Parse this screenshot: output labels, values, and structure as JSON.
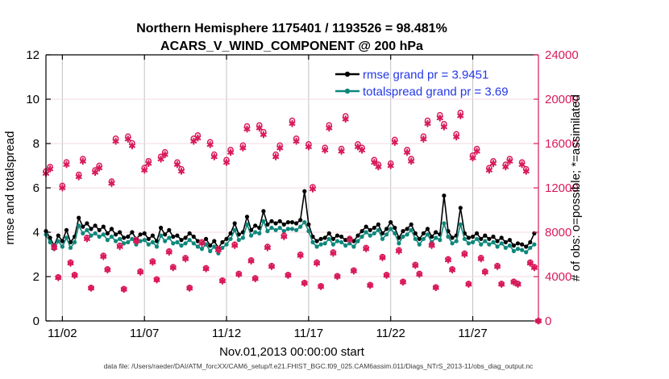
{
  "figure": {
    "background": "#ffffff"
  },
  "chart_data": {
    "type": "line+scatter",
    "title_line1": "Northern Hemisphere 1175401 / 1193526 = 98.481%",
    "title_line2": "ACARS_V_WIND_COMPONENT @ 200 hPa",
    "xlabel": "Nov.01,2013 00:00:00 start",
    "footer": "data file: /Users/raeder/DAI/ATM_forcXX/CAM6_setup/f.e21.FHIST_BGC.f09_025.CAM6assim.011/Diags_NTrS_2013-11/obs_diag_output.nc",
    "samples_per_day": 4,
    "rmse_grand_pr": 3.9451,
    "totalspread_grand_pr": 3.69,
    "legend_text_color": "#2438e8",
    "x_axis": {
      "range_days": [
        0,
        30
      ],
      "tick_days": [
        1,
        6,
        11,
        16,
        21,
        26
      ],
      "tick_labels": [
        "11/02",
        "11/07",
        "11/12",
        "11/17",
        "11/22",
        "11/27"
      ],
      "grid_color": "#c2c2c2"
    },
    "left_axis": {
      "label": "rmse and totalspread",
      "range": [
        0,
        12
      ],
      "ticks": [
        0,
        2,
        4,
        6,
        8,
        10,
        12
      ],
      "color": "#000000",
      "grid_color": "#f3d9e2"
    },
    "right_axis": {
      "label": "# of obs: o=possible; *=assimilated",
      "range": [
        0,
        24000
      ],
      "ticks": [
        0,
        4000,
        8000,
        12000,
        16000,
        20000,
        24000
      ],
      "color": "#d91a59"
    },
    "series": [
      {
        "name": "rmse",
        "legend": "rmse grand pr = 3.9451",
        "color": "#000000",
        "axis": "left",
        "daily": [
          [
            4.05,
            3.75,
            3.4,
            3.85
          ],
          [
            3.6,
            4.1,
            3.55,
            3.8
          ],
          [
            4.65,
            4.25,
            4.4,
            4.15
          ],
          [
            4.3,
            4.1,
            4.25,
            3.95
          ],
          [
            4.15,
            3.9,
            4.0,
            3.75
          ],
          [
            3.8,
            4.0,
            3.7,
            3.9
          ],
          [
            3.95,
            3.7,
            3.85,
            3.6
          ],
          [
            4.2,
            3.9,
            4.1,
            3.8
          ],
          [
            3.85,
            3.65,
            3.75,
            3.95
          ],
          [
            3.8,
            3.6,
            3.5,
            3.7
          ],
          [
            3.4,
            3.6,
            3.3,
            3.55
          ],
          [
            3.7,
            3.95,
            4.4,
            3.9
          ],
          [
            4.0,
            4.7,
            4.1,
            4.3
          ],
          [
            4.2,
            4.95,
            4.35,
            4.5
          ],
          [
            4.4,
            4.5,
            4.35,
            4.45
          ],
          [
            4.45,
            4.4,
            4.55,
            5.85
          ],
          [
            4.35,
            3.8,
            3.6,
            3.7
          ],
          [
            3.75,
            3.95,
            3.7,
            3.85
          ],
          [
            3.8,
            3.65,
            3.75,
            3.6
          ],
          [
            3.85,
            4.05,
            4.25,
            4.1
          ],
          [
            4.2,
            4.35,
            3.95,
            4.15
          ],
          [
            4.45,
            4.2,
            3.75,
            4.05
          ],
          [
            4.15,
            4.35,
            3.95,
            3.7
          ],
          [
            3.95,
            4.15,
            3.8,
            4.0
          ],
          [
            3.9,
            5.65,
            4.05,
            3.75
          ],
          [
            3.85,
            5.1,
            3.95,
            3.75
          ],
          [
            3.8,
            3.95,
            3.7,
            3.85
          ],
          [
            3.7,
            3.8,
            3.6,
            3.75
          ],
          [
            3.55,
            3.65,
            3.4,
            3.5
          ],
          [
            3.45,
            3.35,
            3.55,
            3.95
          ]
        ]
      },
      {
        "name": "totalspread",
        "legend": "totalspread grand pr = 3.69",
        "color": "#0e877b",
        "axis": "left",
        "daily": [
          [
            3.9,
            3.55,
            3.25,
            3.6
          ],
          [
            3.35,
            3.75,
            3.3,
            3.55
          ],
          [
            4.3,
            3.95,
            4.1,
            3.85
          ],
          [
            3.95,
            3.8,
            3.9,
            3.65
          ],
          [
            3.8,
            3.6,
            3.7,
            3.5
          ],
          [
            3.55,
            3.7,
            3.45,
            3.6
          ],
          [
            3.65,
            3.45,
            3.55,
            3.35
          ],
          [
            3.85,
            3.6,
            3.75,
            3.5
          ],
          [
            3.55,
            3.4,
            3.5,
            3.65
          ],
          [
            3.5,
            3.35,
            3.25,
            3.45
          ],
          [
            3.15,
            3.35,
            3.05,
            3.3
          ],
          [
            3.45,
            3.7,
            4.1,
            3.65
          ],
          [
            3.75,
            4.35,
            3.85,
            4.0
          ],
          [
            3.95,
            4.5,
            4.05,
            4.2
          ],
          [
            4.1,
            4.2,
            4.05,
            4.15
          ],
          [
            4.15,
            4.1,
            4.25,
            4.45
          ],
          [
            4.05,
            3.55,
            3.35,
            3.45
          ],
          [
            3.5,
            3.7,
            3.45,
            3.6
          ],
          [
            3.55,
            3.4,
            3.5,
            3.35
          ],
          [
            3.6,
            3.8,
            4.0,
            3.85
          ],
          [
            3.95,
            4.1,
            3.7,
            3.9
          ],
          [
            4.15,
            3.95,
            3.5,
            3.8
          ],
          [
            3.9,
            4.1,
            3.7,
            3.45
          ],
          [
            3.7,
            3.9,
            3.55,
            3.75
          ],
          [
            3.65,
            4.4,
            3.8,
            3.5
          ],
          [
            3.6,
            4.35,
            3.7,
            3.5
          ],
          [
            3.55,
            3.7,
            3.45,
            3.6
          ],
          [
            3.45,
            3.55,
            3.35,
            3.5
          ],
          [
            3.3,
            3.4,
            3.15,
            3.25
          ],
          [
            3.2,
            3.1,
            3.3,
            3.45
          ]
        ]
      }
    ],
    "obs": {
      "color": "#d91a59",
      "axis": "right",
      "possible_marker": "o",
      "assimilated_marker": "*",
      "assimilated_daily": [
        [
          13300,
          13700,
          6600,
          3900
        ],
        [
          12000,
          14100,
          5200,
          4100
        ],
        [
          13000,
          14400,
          7400,
          2950
        ],
        [
          13400,
          13800,
          5800,
          4600
        ],
        [
          12400,
          16200,
          6700,
          2850
        ],
        [
          16400,
          15800,
          7200,
          4400
        ],
        [
          13600,
          14200,
          5300,
          3700
        ],
        [
          14600,
          15000,
          6200,
          4800
        ],
        [
          14100,
          13500,
          5600,
          2950
        ],
        [
          16200,
          16500,
          7000,
          4700
        ],
        [
          15900,
          14800,
          6400,
          3600
        ],
        [
          14300,
          15200,
          6800,
          4200
        ],
        [
          15600,
          17300,
          5400,
          3800
        ],
        [
          17400,
          16800,
          6600,
          4900
        ],
        [
          14800,
          15600,
          7600,
          4100
        ],
        [
          17800,
          16200,
          5900,
          3400
        ],
        [
          15700,
          11900,
          5200,
          3100
        ],
        [
          15400,
          17400,
          6100,
          4000
        ],
        [
          15300,
          18200,
          7300,
          4500
        ],
        [
          15700,
          15400,
          6500,
          3200
        ],
        [
          14300,
          13900,
          5700,
          4100
        ],
        [
          14000,
          16100,
          6300,
          3500
        ],
        [
          15200,
          14400,
          5000,
          4200
        ],
        [
          16400,
          17800,
          6800,
          3000
        ],
        [
          18300,
          17500,
          5500,
          4600
        ],
        [
          16600,
          18500,
          6000,
          3300
        ],
        [
          14700,
          15300,
          5600,
          4400
        ],
        [
          13600,
          14200,
          4900,
          3300
        ],
        [
          13900,
          14400,
          3500,
          3300
        ],
        [
          14100,
          13500,
          5200,
          4800
        ]
      ],
      "possible_daily": [
        [
          13500,
          13900,
          6700,
          3960
        ],
        [
          12200,
          14320,
          5280,
          4160
        ],
        [
          13200,
          14620,
          7510,
          3000
        ],
        [
          13600,
          14010,
          5890,
          4670
        ],
        [
          12590,
          16450,
          6800,
          2890
        ],
        [
          16650,
          16040,
          7310,
          4470
        ],
        [
          13810,
          14420,
          5380,
          3760
        ],
        [
          14820,
          15230,
          6290,
          4870
        ],
        [
          14310,
          13700,
          5680,
          2995
        ],
        [
          16450,
          16750,
          7110,
          4770
        ],
        [
          16140,
          15020,
          6500,
          3655
        ],
        [
          14520,
          15430,
          6900,
          4260
        ],
        [
          15840,
          17560,
          5480,
          3860
        ],
        [
          17660,
          17050,
          6700,
          4975
        ],
        [
          15020,
          15840,
          7710,
          4160
        ],
        [
          18070,
          16450,
          5990,
          3450
        ],
        [
          15940,
          12080,
          5280,
          3150
        ],
        [
          15630,
          17660,
          6190,
          4060
        ],
        [
          15530,
          18475,
          7410,
          4570
        ],
        [
          15940,
          15630,
          6600,
          3250
        ],
        [
          14520,
          14110,
          5785,
          4160
        ],
        [
          14210,
          16345,
          6395,
          3550
        ],
        [
          15430,
          14620,
          5075,
          4265
        ],
        [
          16650,
          18070,
          6900,
          3045
        ],
        [
          18575,
          17765,
          5580,
          4670
        ],
        [
          16850,
          18780,
          6090,
          3350
        ],
        [
          14920,
          15530,
          5685,
          4465
        ],
        [
          13805,
          14415,
          4975,
          3350
        ],
        [
          14110,
          14620,
          3555,
          3350
        ],
        [
          14315,
          13700,
          5280,
          4870
        ]
      ],
      "final_point": {
        "day": 30,
        "possible": 0,
        "assimilated": 0
      }
    }
  }
}
